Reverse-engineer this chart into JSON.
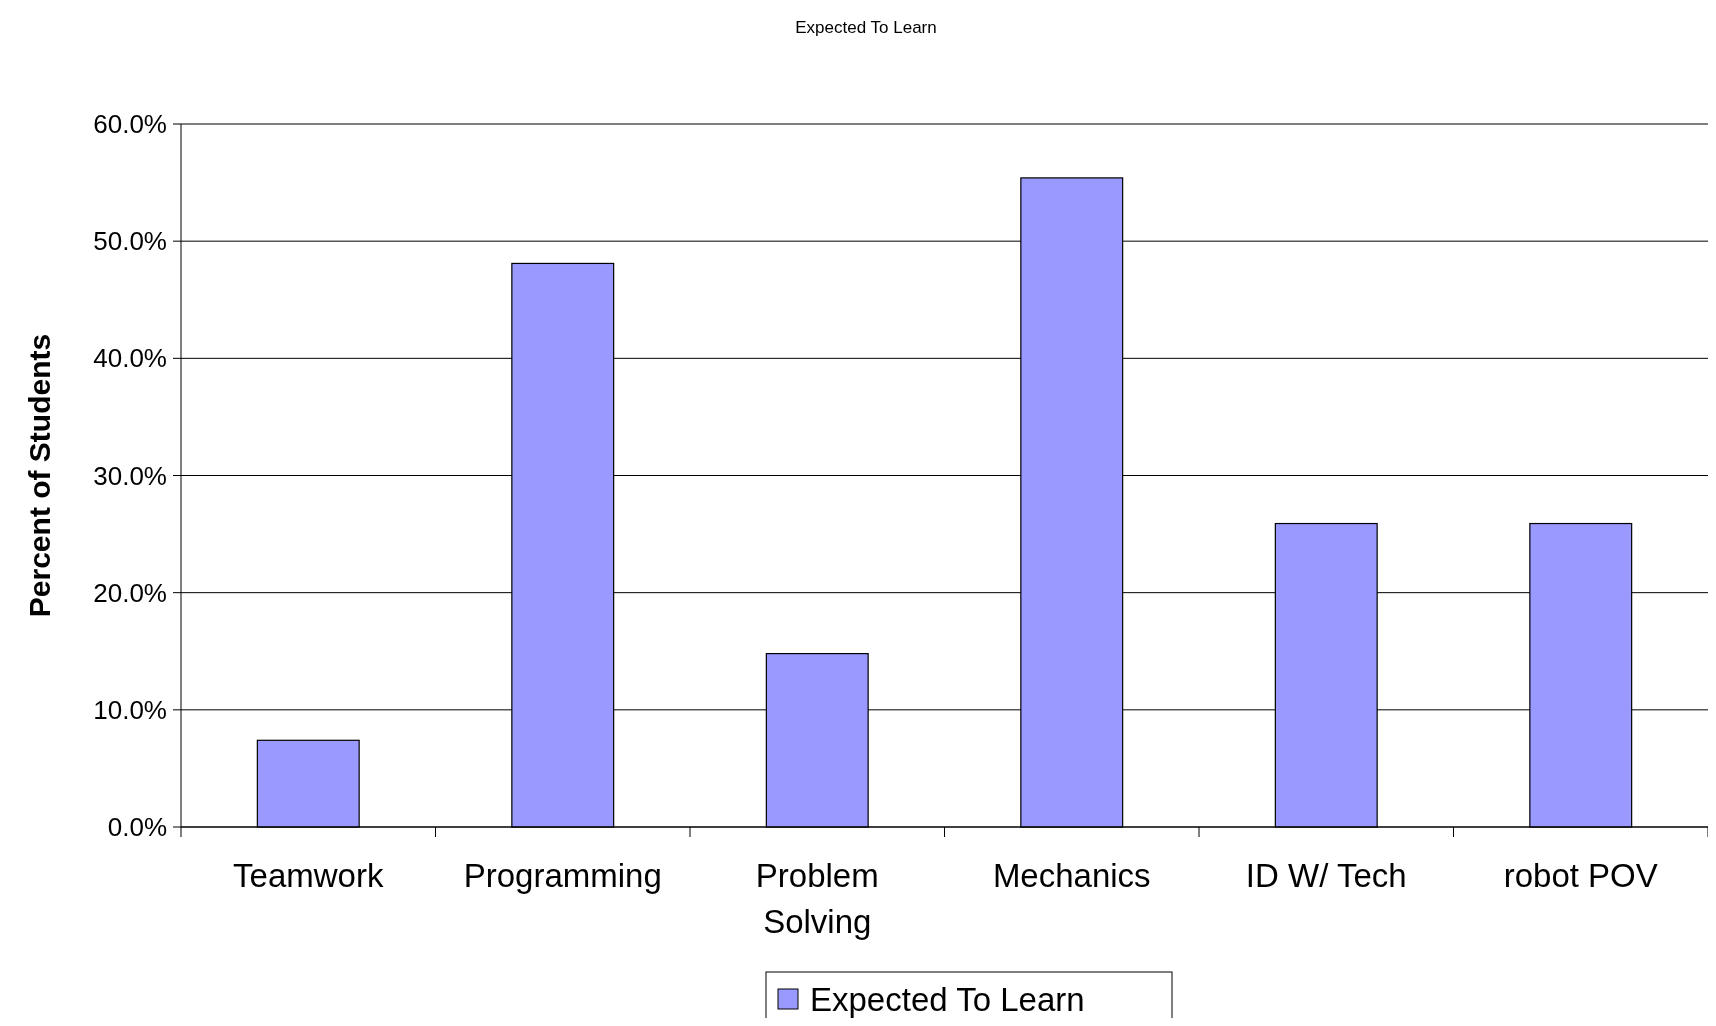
{
  "chart_data": {
    "type": "bar",
    "title": "Expected To Learn",
    "ylabel": "Percent of Students",
    "categories": [
      "Teamwork",
      "Programming",
      "Problem Solving",
      "Mechanics",
      "ID W/ Tech",
      "robot POV"
    ],
    "series": [
      {
        "name": "Expected To Learn",
        "color": "#9999ff",
        "values": [
          7.4,
          48.1,
          14.8,
          55.4,
          25.9,
          25.9
        ]
      }
    ],
    "ylim": [
      0,
      60
    ],
    "yticks": [
      {
        "value": 0,
        "label": "0.0%"
      },
      {
        "value": 10,
        "label": "10.0%"
      },
      {
        "value": 20,
        "label": "20.0%"
      },
      {
        "value": 30,
        "label": "30.0%"
      },
      {
        "value": 40,
        "label": "40.0%"
      },
      {
        "value": 50,
        "label": "50.0%"
      },
      {
        "value": 60,
        "label": "60.0%"
      }
    ],
    "grid": "y",
    "legend": "bottom"
  }
}
